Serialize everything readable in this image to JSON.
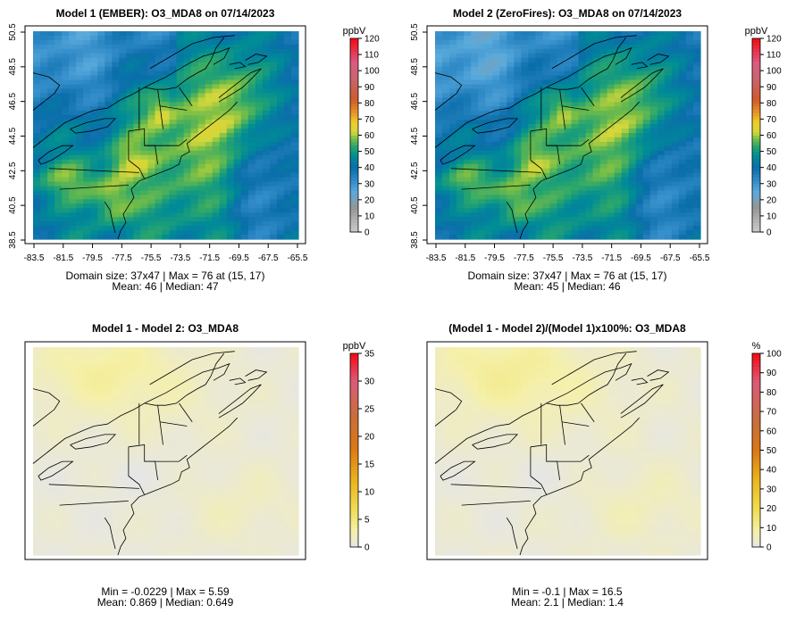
{
  "chart_data": [
    {
      "type": "heatmap",
      "title": "Model 1 (EMBER): O3_MDA8 on 07/14/2023",
      "x_ticks": [
        "-83.5",
        "-81.5",
        "-79.5",
        "-77.5",
        "-75.5",
        "-73.5",
        "-71.5",
        "-69.5",
        "-67.5",
        "-65.5"
      ],
      "y_ticks": [
        "38.5",
        "40.5",
        "42.5",
        "44.5",
        "46.5",
        "48.5",
        "50.5"
      ],
      "colorbar": {
        "unit": "ppbV",
        "ticks": [
          "0",
          "10",
          "20",
          "30",
          "40",
          "50",
          "60",
          "70",
          "80",
          "90",
          "100",
          "110",
          "120"
        ],
        "min": 0,
        "max": 120
      },
      "stats_line1": "Domain size: 37x47 | Max = 76 at (15, 17)",
      "stats_line2": "Mean: 46 |  Median: 47",
      "grid": false
    },
    {
      "type": "heatmap",
      "title": "Model 2 (ZeroFires): O3_MDA8 on 07/14/2023",
      "x_ticks": [
        "-83.5",
        "-81.5",
        "-79.5",
        "-77.5",
        "-75.5",
        "-73.5",
        "-71.5",
        "-69.5",
        "-67.5",
        "-65.5"
      ],
      "y_ticks": [
        "38.5",
        "40.5",
        "42.5",
        "44.5",
        "46.5",
        "48.5",
        "50.5"
      ],
      "colorbar": {
        "unit": "ppbV",
        "ticks": [
          "0",
          "10",
          "20",
          "30",
          "40",
          "50",
          "60",
          "70",
          "80",
          "90",
          "100",
          "110",
          "120"
        ],
        "min": 0,
        "max": 120
      },
      "stats_line1": "Domain size: 37x47 | Max = 76 at (15, 17)",
      "stats_line2": "Mean: 45 |  Median: 46",
      "grid": false
    },
    {
      "type": "heatmap",
      "title": "Model 1 - Model 2: O3_MDA8",
      "colorbar": {
        "unit": "ppbV",
        "ticks": [
          "0",
          "5",
          "10",
          "15",
          "20",
          "25",
          "30",
          "35"
        ],
        "min": 0,
        "max": 35
      },
      "stats_line1": "Min = -0.0229 | Max = 5.59",
      "stats_line2": "Mean: 0.869 |  Median: 0.649",
      "grid": false
    },
    {
      "type": "heatmap",
      "title": "(Model 1 - Model 2)/(Model 1)x100%: O3_MDA8",
      "colorbar": {
        "unit": "%",
        "ticks": [
          "0",
          "10",
          "20",
          "30",
          "40",
          "50",
          "60",
          "70",
          "80",
          "90",
          "100"
        ],
        "min": 0,
        "max": 100
      },
      "stats_line1": "Min = -0.1 | Max = 16.5",
      "stats_line2": "Mean: 2.1 |  Median: 1.4",
      "grid": false
    }
  ]
}
